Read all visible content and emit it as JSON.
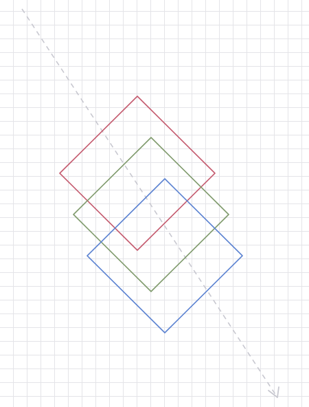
{
  "canvas": {
    "grid": true,
    "background": "#ffffff",
    "grid_color": "#e4e4e8"
  },
  "shapes": [
    {
      "name": "diamond-red",
      "shape": "diamond",
      "stroke": "#c45a6e"
    },
    {
      "name": "diamond-green",
      "shape": "diamond",
      "stroke": "#7f9a6c"
    },
    {
      "name": "diamond-blue",
      "shape": "diamond",
      "stroke": "#5b82d1"
    }
  ],
  "arrow": {
    "style": "dashed",
    "direction": "down-right",
    "stroke": "#c8c8d0"
  }
}
